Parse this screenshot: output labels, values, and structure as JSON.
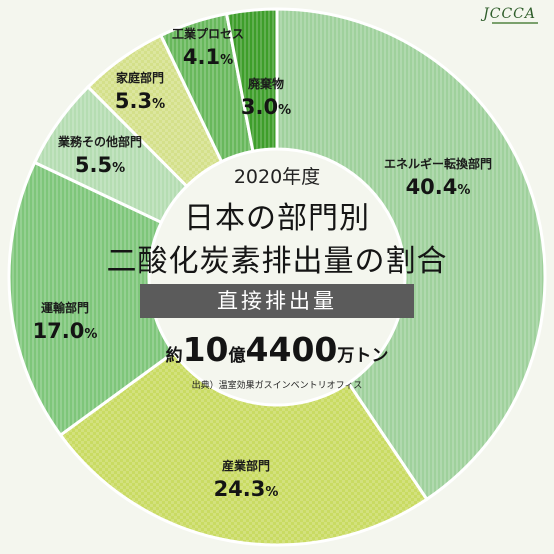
{
  "logo": "JCCCA",
  "chart_data": {
    "type": "pie",
    "donut": true,
    "year_label": "2020年度",
    "title_line1": "日本の部門別",
    "title_line2": "二酸化炭素排出量の割合",
    "subtitle": "直接排出量",
    "total": {
      "prefix": "約",
      "number_a": "10",
      "mid": "億",
      "number_b": "4400",
      "suffix": "万トン"
    },
    "source": "出典）温室効果ガスインベントリオフィス",
    "unit": "%",
    "slices": [
      {
        "label": "エネルギー転換部門",
        "value": 40.4,
        "color": "#9fd19c",
        "text": "40.4"
      },
      {
        "label": "産業部門",
        "value": 24.3,
        "color": "#c9db62",
        "text": "24.3"
      },
      {
        "label": "運輸部門",
        "value": 17.0,
        "color": "#7ec67a",
        "text": "17.0"
      },
      {
        "label": "業務その他部門",
        "value": 5.5,
        "color": "#b5ddb2",
        "text": "5.5"
      },
      {
        "label": "家庭部門",
        "value": 5.3,
        "color": "#d4e08a",
        "text": "5.3"
      },
      {
        "label": "工業プロセス",
        "value": 4.1,
        "color": "#68b85c",
        "text": "4.1"
      },
      {
        "label": "廃棄物",
        "value": 3.0,
        "color": "#3e9e2b",
        "text": "3.0"
      }
    ]
  }
}
